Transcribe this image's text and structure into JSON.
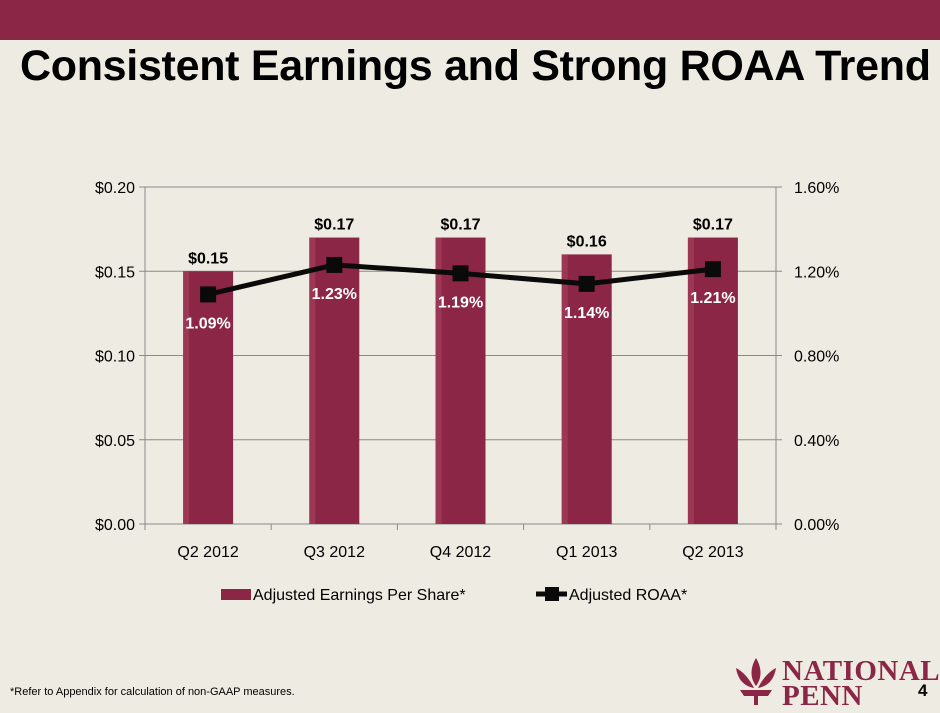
{
  "header": {
    "title": "Consistent Earnings and Strong ROAA Trend"
  },
  "footer": {
    "footnote": "*Refer to Appendix for calculation of non-GAAP measures.",
    "page_number": "4"
  },
  "logo": {
    "line1": "NATIONAL",
    "line2": "PENN"
  },
  "colors": {
    "brand": "#8b2646",
    "bar": "#8b2646",
    "line": "#0a0a0a",
    "background": "#eeebe2"
  },
  "chart_data": {
    "type": "bar",
    "categories": [
      "Q2 2012",
      "Q3 2012",
      "Q4 2012",
      "Q1 2013",
      "Q2 2013"
    ],
    "series": [
      {
        "name": "Adjusted Earnings Per Share*",
        "type": "bar",
        "axis": "left",
        "values": [
          0.15,
          0.17,
          0.17,
          0.16,
          0.17
        ],
        "data_labels": [
          "$0.15",
          "$0.17",
          "$0.17",
          "$0.16",
          "$0.17"
        ]
      },
      {
        "name": "Adjusted ROAA*",
        "type": "line",
        "axis": "right",
        "values": [
          1.09,
          1.23,
          1.19,
          1.14,
          1.21
        ],
        "data_labels": [
          "1.09%",
          "1.23%",
          "1.19%",
          "1.14%",
          "1.21%"
        ]
      }
    ],
    "y_left": {
      "range": [
        0,
        0.2
      ],
      "ticks": [
        0,
        0.05,
        0.1,
        0.15,
        0.2
      ],
      "tick_labels": [
        "$0.00",
        "$0.05",
        "$0.10",
        "$0.15",
        "$0.20"
      ]
    },
    "y_right": {
      "range": [
        0,
        1.6
      ],
      "ticks": [
        0,
        0.4,
        0.8,
        1.2,
        1.6
      ],
      "tick_labels": [
        "0.00%",
        "0.40%",
        "0.80%",
        "1.20%",
        "1.60%"
      ]
    },
    "grid": true,
    "legend_position": "bottom"
  }
}
